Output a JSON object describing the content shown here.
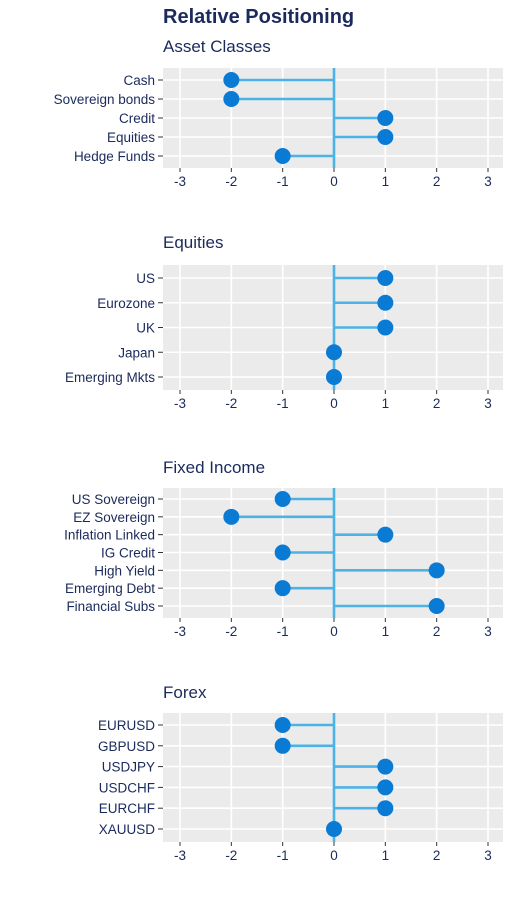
{
  "title": "Relative Positioning",
  "colors": {
    "panel_background": "#ebebeb",
    "grid": "#ffffff",
    "stem": "#4cb3e6",
    "point": "#0a7bd4",
    "text": "#1b2a5c"
  },
  "chart_data": [
    {
      "type": "lollipop",
      "title": "Asset Classes",
      "categories": [
        "Cash",
        "Sovereign bonds",
        "Credit",
        "Equities",
        "Hedge Funds"
      ],
      "values": [
        -2,
        -2,
        1,
        1,
        -1
      ],
      "xlim": [
        -3,
        3
      ],
      "xticks": [
        -3,
        -2,
        -1,
        0,
        1,
        2,
        3
      ],
      "grid": true
    },
    {
      "type": "lollipop",
      "title": "Equities",
      "categories": [
        "US",
        "Eurozone",
        "UK",
        "Japan",
        "Emerging Mkts"
      ],
      "values": [
        1,
        1,
        1,
        0,
        0
      ],
      "xlim": [
        -3,
        3
      ],
      "xticks": [
        -3,
        -2,
        -1,
        0,
        1,
        2,
        3
      ],
      "grid": true
    },
    {
      "type": "lollipop",
      "title": "Fixed Income",
      "categories": [
        "US Sovereign",
        "EZ Sovereign",
        "Inflation Linked",
        "IG Credit",
        "High Yield",
        "Emerging Debt",
        "Financial Subs"
      ],
      "values": [
        -1,
        -2,
        1,
        -1,
        2,
        -1,
        2
      ],
      "xlim": [
        -3,
        3
      ],
      "xticks": [
        -3,
        -2,
        -1,
        0,
        1,
        2,
        3
      ],
      "grid": true
    },
    {
      "type": "lollipop",
      "title": "Forex",
      "categories": [
        "EURUSD",
        "GBPUSD",
        "USDJPY",
        "USDCHF",
        "EURCHF",
        "XAUUSD"
      ],
      "values": [
        -1,
        -1,
        1,
        1,
        1,
        0
      ],
      "xlim": [
        -3,
        3
      ],
      "xticks": [
        -3,
        -2,
        -1,
        0,
        1,
        2,
        3
      ],
      "grid": true
    }
  ]
}
